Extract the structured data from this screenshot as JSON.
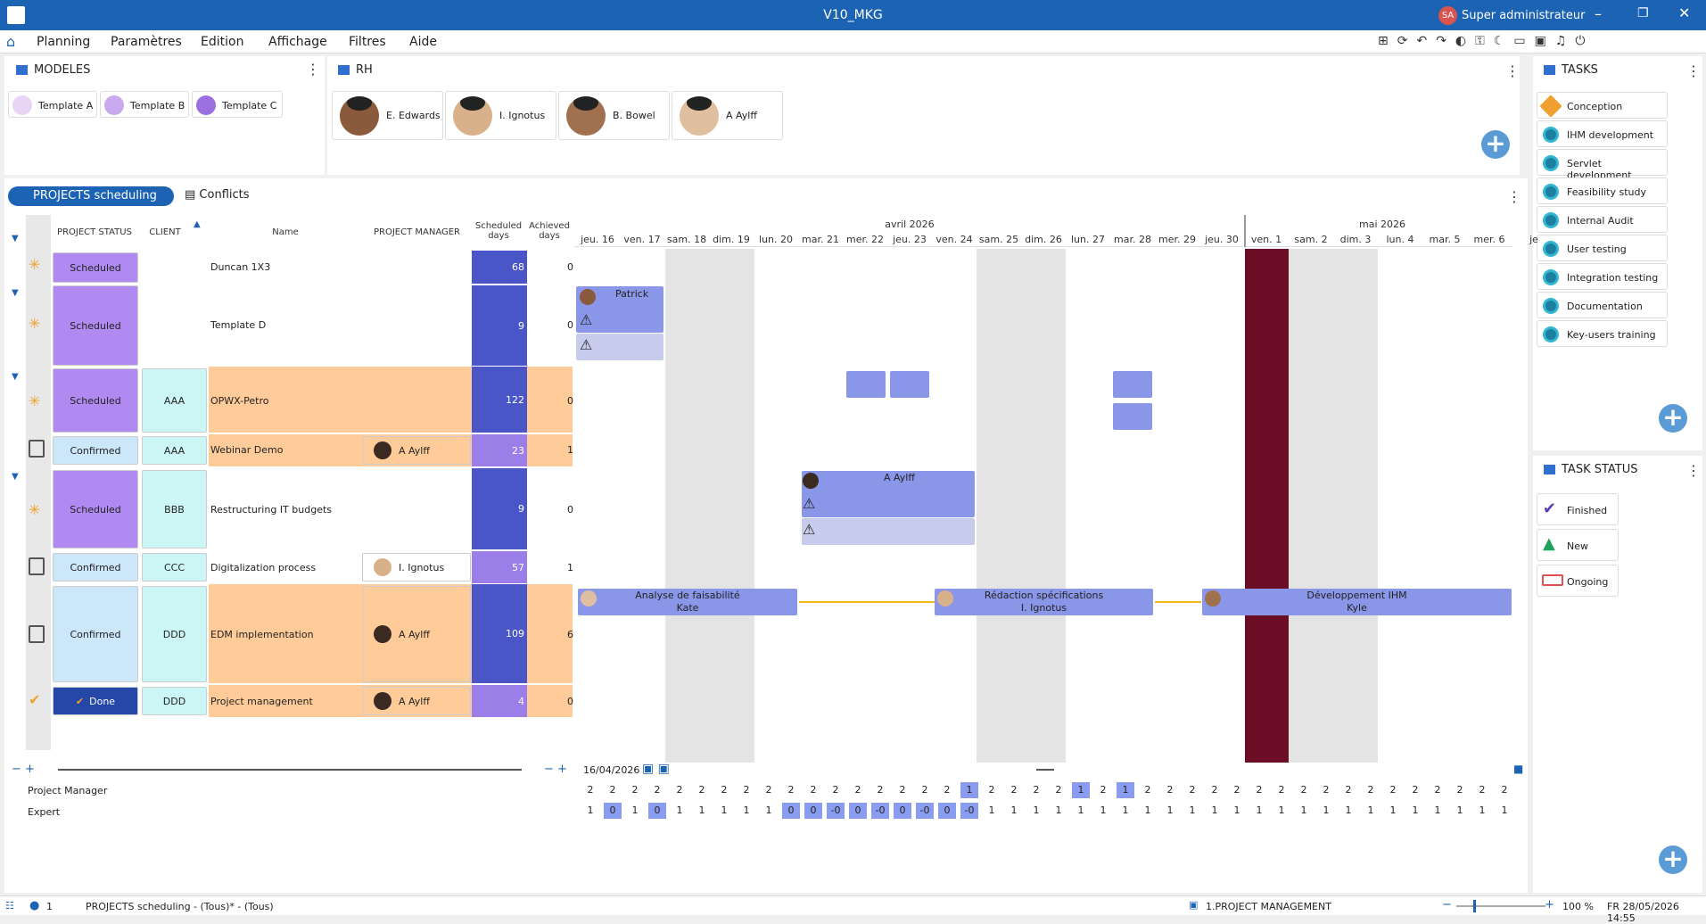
{
  "window": {
    "title": "V10_MKG",
    "user_initials": "SA",
    "user_name": "Super administrateur"
  },
  "menu": [
    "Planning",
    "Paramètres",
    "Edition",
    "Affichage",
    "Filtres",
    "Aide"
  ],
  "modeles": {
    "title": "MODELES",
    "items": [
      {
        "label": "Template A",
        "color": "#e8d5f5"
      },
      {
        "label": "Template B",
        "color": "#c9a8f0"
      },
      {
        "label": "Template C",
        "color": "#9b6fe0"
      }
    ]
  },
  "rh": {
    "title": "RH",
    "people": [
      "E. Edwards",
      "I. Ignotus",
      "B. Bowel",
      "A Aylff"
    ]
  },
  "tasks": {
    "title": "TASKS",
    "items": [
      "Conception",
      "IHM development",
      "Servlet development",
      "Feasibility study",
      "Internal Audit",
      "User testing",
      "Integration testing",
      "Documentation",
      "Key-users training"
    ]
  },
  "task_status": {
    "title": "TASK STATUS",
    "items": [
      "Finished",
      "New",
      "Ongoing"
    ]
  },
  "tabs": {
    "active": "PROJECTS scheduling",
    "other": "Conflicts"
  },
  "columns": [
    "PROJECT STATUS",
    "CLIENT",
    "Name",
    "PROJECT MANAGER",
    "Scheduled days",
    "Achieved days"
  ],
  "months": [
    "avril 2026",
    "mai 2026"
  ],
  "days": [
    "jeu. 16",
    "ven. 17",
    "sam. 18",
    "dim. 19",
    "lun. 20",
    "mar. 21",
    "mer. 22",
    "jeu. 23",
    "ven. 24",
    "sam. 25",
    "dim. 26",
    "lun. 27",
    "mar. 28",
    "mer. 29",
    "jeu. 30",
    "ven. 1",
    "sam. 2",
    "dim. 3",
    "lun. 4",
    "mar. 5",
    "mer. 6",
    "je"
  ],
  "rows": [
    {
      "status": "Scheduled",
      "client": "",
      "name": "Duncan 1X3",
      "manager": "",
      "scheduled": "68",
      "achieved": "0"
    },
    {
      "status": "Scheduled",
      "client": "",
      "name": "Template D",
      "manager": "",
      "scheduled": "9",
      "achieved": "0"
    },
    {
      "status": "Scheduled",
      "client": "AAA",
      "name": "OPWX-Petro",
      "manager": "",
      "scheduled": "122",
      "achieved": "0"
    },
    {
      "status": "Confirmed",
      "client": "AAA",
      "name": "Webinar Demo",
      "manager": "A Aylff",
      "scheduled": "23",
      "achieved": "1"
    },
    {
      "status": "Scheduled",
      "client": "BBB",
      "name": "Restructuring IT budgets",
      "manager": "",
      "scheduled": "9",
      "achieved": "0"
    },
    {
      "status": "Confirmed",
      "client": "CCC",
      "name": "Digitalization process",
      "manager": "I. Ignotus",
      "scheduled": "57",
      "achieved": "1"
    },
    {
      "status": "Confirmed",
      "client": "DDD",
      "name": "EDM implementation",
      "manager": "A Aylff",
      "scheduled": "109",
      "achieved": "6"
    },
    {
      "status": "Done",
      "client": "DDD",
      "name": "Project management",
      "manager": "A Aylff",
      "scheduled": "4",
      "achieved": "0"
    }
  ],
  "gantt": {
    "patrick": "Patrick",
    "aaylff": "A Aylff",
    "bar1": {
      "line1": "Analyse de faisabilité",
      "line2": "Kate"
    },
    "bar2": {
      "line1": "Rédaction spécifications",
      "line2": "I. Ignotus"
    },
    "bar3": {
      "line1": "Développement IHM",
      "line2": "Kyle"
    }
  },
  "date_nav": "16/04/2026",
  "load": {
    "labels": [
      "Project Manager",
      "Expert"
    ],
    "pm": [
      "2",
      "2",
      "2",
      "2",
      "2",
      "2",
      "2",
      "2",
      "2",
      "2",
      "2",
      "2",
      "2",
      "2",
      "2",
      "2",
      "2",
      "1",
      "2",
      "2",
      "2",
      "2",
      "1",
      "2",
      "1",
      "2",
      "2",
      "2",
      "2",
      "2",
      "2",
      "2",
      "2",
      "2",
      "2",
      "2",
      "2",
      "2",
      "2",
      "2",
      "2",
      "2",
      "2"
    ],
    "ex": [
      "1",
      "0",
      "1",
      "0",
      "1",
      "1",
      "1",
      "1",
      "1",
      "0",
      "0",
      "-0",
      "0",
      "-0",
      "0",
      "-0",
      "0",
      "-0",
      "1",
      "1",
      "1",
      "1",
      "1",
      "1",
      "1",
      "1",
      "1",
      "1",
      "1",
      "1",
      "1",
      "1",
      "1",
      "1",
      "1",
      "1",
      "1",
      "1",
      "1",
      "1",
      "1",
      "1",
      "1"
    ],
    "pm_hl": [
      17,
      22,
      24
    ],
    "ex_hl": [
      1,
      3,
      9,
      10,
      11,
      12,
      13,
      14,
      15,
      16,
      17
    ]
  },
  "status_bar": {
    "users": "1",
    "view": "PROJECTS scheduling - (Tous)* - (Tous)",
    "module": "1.PROJECT MANAGEMENT",
    "zoom": "100 %",
    "locale_date": "FR 28/05/2026 14:55"
  }
}
